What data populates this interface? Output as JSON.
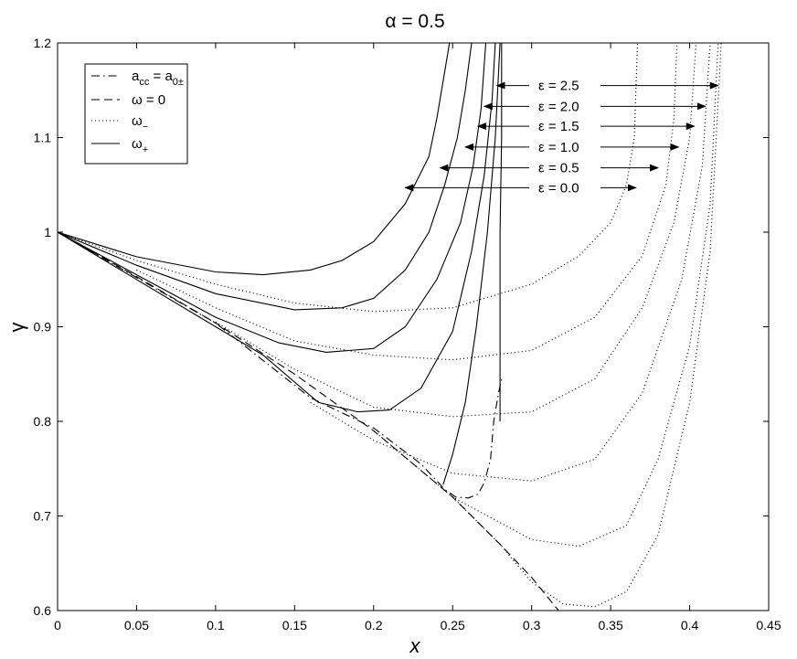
{
  "chart_data": {
    "type": "line",
    "title": "α = 0.5",
    "xlabel": "x",
    "ylabel": "γ",
    "xlim": [
      0,
      0.45
    ],
    "ylim": [
      0.6,
      1.2
    ],
    "xticks": [
      "0",
      "0.05",
      "0.1",
      "0.15",
      "0.2",
      "0.25",
      "0.3",
      "0.35",
      "0.4",
      "0.45"
    ],
    "yticks": [
      "0.6",
      "0.7",
      "0.8",
      "0.9",
      "1",
      "1.1",
      "1.2"
    ],
    "grid": false,
    "legend": {
      "placement": "top-left",
      "entries": [
        {
          "label_main": "a",
          "label_sub": "cc",
          "label_mid": " = a",
          "label_sub2": "0±",
          "style": "dashdot"
        },
        {
          "label_main": "ω = 0",
          "label_sub": "",
          "label_mid": "",
          "label_sub2": "",
          "style": "dashed"
        },
        {
          "label_main": "ω",
          "label_sub": "−",
          "label_mid": "",
          "label_sub2": "",
          "style": "dotted"
        },
        {
          "label_main": "ω",
          "label_sub": "+",
          "label_mid": "",
          "label_sub2": "",
          "style": "solid"
        }
      ]
    },
    "series": [
      {
        "style": "dashdot",
        "points": [
          [
            0,
            1
          ],
          [
            0.1,
            0.904
          ],
          [
            0.16,
            0.825
          ],
          [
            0.2,
            0.793
          ],
          [
            0.23,
            0.755
          ],
          [
            0.245,
            0.728
          ],
          [
            0.252,
            0.72
          ],
          [
            0.26,
            0.719
          ],
          [
            0.266,
            0.723
          ],
          [
            0.27,
            0.735
          ],
          [
            0.274,
            0.76
          ],
          [
            0.276,
            0.8
          ],
          [
            0.279,
            0.83
          ],
          [
            0.281,
            0.845
          ]
        ]
      },
      {
        "style": "dashed",
        "points": [
          [
            0,
            1
          ],
          [
            0.05,
            0.953
          ],
          [
            0.1,
            0.904
          ],
          [
            0.15,
            0.85
          ],
          [
            0.2,
            0.79
          ],
          [
            0.25,
            0.72
          ],
          [
            0.28,
            0.67
          ],
          [
            0.3,
            0.635
          ],
          [
            0.317,
            0.6
          ]
        ]
      },
      {
        "style": "solid",
        "eps": "0.0",
        "points": [
          [
            0,
            1
          ],
          [
            0.05,
            0.974
          ],
          [
            0.1,
            0.958
          ],
          [
            0.13,
            0.955
          ],
          [
            0.16,
            0.96
          ],
          [
            0.18,
            0.97
          ],
          [
            0.2,
            0.99
          ],
          [
            0.22,
            1.03
          ],
          [
            0.235,
            1.08
          ],
          [
            0.24,
            1.12
          ],
          [
            0.245,
            1.17
          ],
          [
            0.248,
            1.2
          ]
        ]
      },
      {
        "style": "solid",
        "eps": "0.5",
        "points": [
          [
            0,
            1
          ],
          [
            0.05,
            0.965
          ],
          [
            0.1,
            0.935
          ],
          [
            0.15,
            0.918
          ],
          [
            0.18,
            0.92
          ],
          [
            0.2,
            0.93
          ],
          [
            0.22,
            0.96
          ],
          [
            0.235,
            1.0
          ],
          [
            0.245,
            1.05
          ],
          [
            0.253,
            1.1
          ],
          [
            0.258,
            1.15
          ],
          [
            0.262,
            1.2
          ]
        ]
      },
      {
        "style": "solid",
        "eps": "1.0",
        "points": [
          [
            0,
            1
          ],
          [
            0.05,
            0.955
          ],
          [
            0.1,
            0.91
          ],
          [
            0.14,
            0.883
          ],
          [
            0.17,
            0.873
          ],
          [
            0.2,
            0.877
          ],
          [
            0.22,
            0.9
          ],
          [
            0.24,
            0.95
          ],
          [
            0.255,
            1.01
          ],
          [
            0.263,
            1.07
          ],
          [
            0.268,
            1.13
          ],
          [
            0.271,
            1.2
          ]
        ]
      },
      {
        "style": "solid",
        "eps": "1.5",
        "points": [
          [
            0,
            1
          ],
          [
            0.05,
            0.95
          ],
          [
            0.1,
            0.9
          ],
          [
            0.13,
            0.87
          ],
          [
            0.165,
            0.82
          ],
          [
            0.19,
            0.81
          ],
          [
            0.21,
            0.812
          ],
          [
            0.23,
            0.835
          ],
          [
            0.25,
            0.895
          ],
          [
            0.262,
            0.98
          ],
          [
            0.27,
            1.06
          ],
          [
            0.275,
            1.14
          ],
          [
            0.277,
            1.2
          ]
        ]
      },
      {
        "style": "solid",
        "eps": "2.0",
        "points": [
          [
            0.244,
            0.733
          ],
          [
            0.25,
            0.765
          ],
          [
            0.258,
            0.82
          ],
          [
            0.265,
            0.9
          ],
          [
            0.272,
            1.0
          ],
          [
            0.277,
            1.1
          ],
          [
            0.28,
            1.2
          ]
        ]
      },
      {
        "style": "solid",
        "eps": "2.5",
        "points": [
          [
            0.28,
            0.8
          ],
          [
            0.28,
            0.9
          ],
          [
            0.28,
            1.0
          ],
          [
            0.281,
            1.1
          ],
          [
            0.281,
            1.2
          ]
        ]
      },
      {
        "style": "dotted",
        "eps": "0.0",
        "points": [
          [
            0,
            1
          ],
          [
            0.05,
            0.97
          ],
          [
            0.1,
            0.945
          ],
          [
            0.15,
            0.925
          ],
          [
            0.2,
            0.916
          ],
          [
            0.25,
            0.92
          ],
          [
            0.3,
            0.945
          ],
          [
            0.33,
            0.975
          ],
          [
            0.35,
            1.01
          ],
          [
            0.36,
            1.05
          ],
          [
            0.365,
            1.1
          ],
          [
            0.367,
            1.2
          ]
        ]
      },
      {
        "style": "dotted",
        "eps": "0.5",
        "points": [
          [
            0.05,
            0.96
          ],
          [
            0.1,
            0.92
          ],
          [
            0.15,
            0.885
          ],
          [
            0.2,
            0.87
          ],
          [
            0.25,
            0.865
          ],
          [
            0.3,
            0.875
          ],
          [
            0.34,
            0.91
          ],
          [
            0.37,
            0.975
          ],
          [
            0.385,
            1.05
          ],
          [
            0.39,
            1.12
          ],
          [
            0.392,
            1.2
          ]
        ]
      },
      {
        "style": "dotted",
        "eps": "1.0",
        "points": [
          [
            0.1,
            0.905
          ],
          [
            0.15,
            0.855
          ],
          [
            0.2,
            0.815
          ],
          [
            0.25,
            0.805
          ],
          [
            0.3,
            0.81
          ],
          [
            0.34,
            0.845
          ],
          [
            0.37,
            0.92
          ],
          [
            0.39,
            1.01
          ],
          [
            0.4,
            1.1
          ],
          [
            0.404,
            1.2
          ]
        ]
      },
      {
        "style": "dotted",
        "eps": "1.5",
        "points": [
          [
            0.16,
            0.82
          ],
          [
            0.2,
            0.78
          ],
          [
            0.25,
            0.745
          ],
          [
            0.3,
            0.737
          ],
          [
            0.34,
            0.76
          ],
          [
            0.37,
            0.83
          ],
          [
            0.395,
            0.95
          ],
          [
            0.408,
            1.07
          ],
          [
            0.413,
            1.2
          ]
        ]
      },
      {
        "style": "dotted",
        "eps": "2.0",
        "points": [
          [
            0.2,
            0.79
          ],
          [
            0.25,
            0.72
          ],
          [
            0.3,
            0.675
          ],
          [
            0.33,
            0.668
          ],
          [
            0.36,
            0.69
          ],
          [
            0.38,
            0.76
          ],
          [
            0.4,
            0.88
          ],
          [
            0.413,
            1.03
          ],
          [
            0.418,
            1.2
          ]
        ]
      },
      {
        "style": "dotted",
        "eps": "2.5",
        "points": [
          [
            0.25,
            0.72
          ],
          [
            0.28,
            0.67
          ],
          [
            0.3,
            0.63
          ],
          [
            0.32,
            0.607
          ],
          [
            0.34,
            0.604
          ],
          [
            0.36,
            0.62
          ],
          [
            0.38,
            0.68
          ],
          [
            0.4,
            0.82
          ],
          [
            0.413,
            0.98
          ],
          [
            0.42,
            1.2
          ]
        ]
      }
    ],
    "annotations": [
      {
        "text": "ε = 2.5",
        "y": 1.155,
        "left_x": 0.278,
        "right_x": 0.418
      },
      {
        "text": "ε = 2.0",
        "y": 1.133,
        "left_x": 0.27,
        "right_x": 0.41
      },
      {
        "text": "ε = 1.5",
        "y": 1.112,
        "left_x": 0.266,
        "right_x": 0.403
      },
      {
        "text": "ε = 1.0",
        "y": 1.09,
        "left_x": 0.258,
        "right_x": 0.393
      },
      {
        "text": "ε = 0.5",
        "y": 1.068,
        "left_x": 0.242,
        "right_x": 0.38
      },
      {
        "text": "ε = 0.0",
        "y": 1.047,
        "left_x": 0.22,
        "right_x": 0.366
      }
    ]
  }
}
